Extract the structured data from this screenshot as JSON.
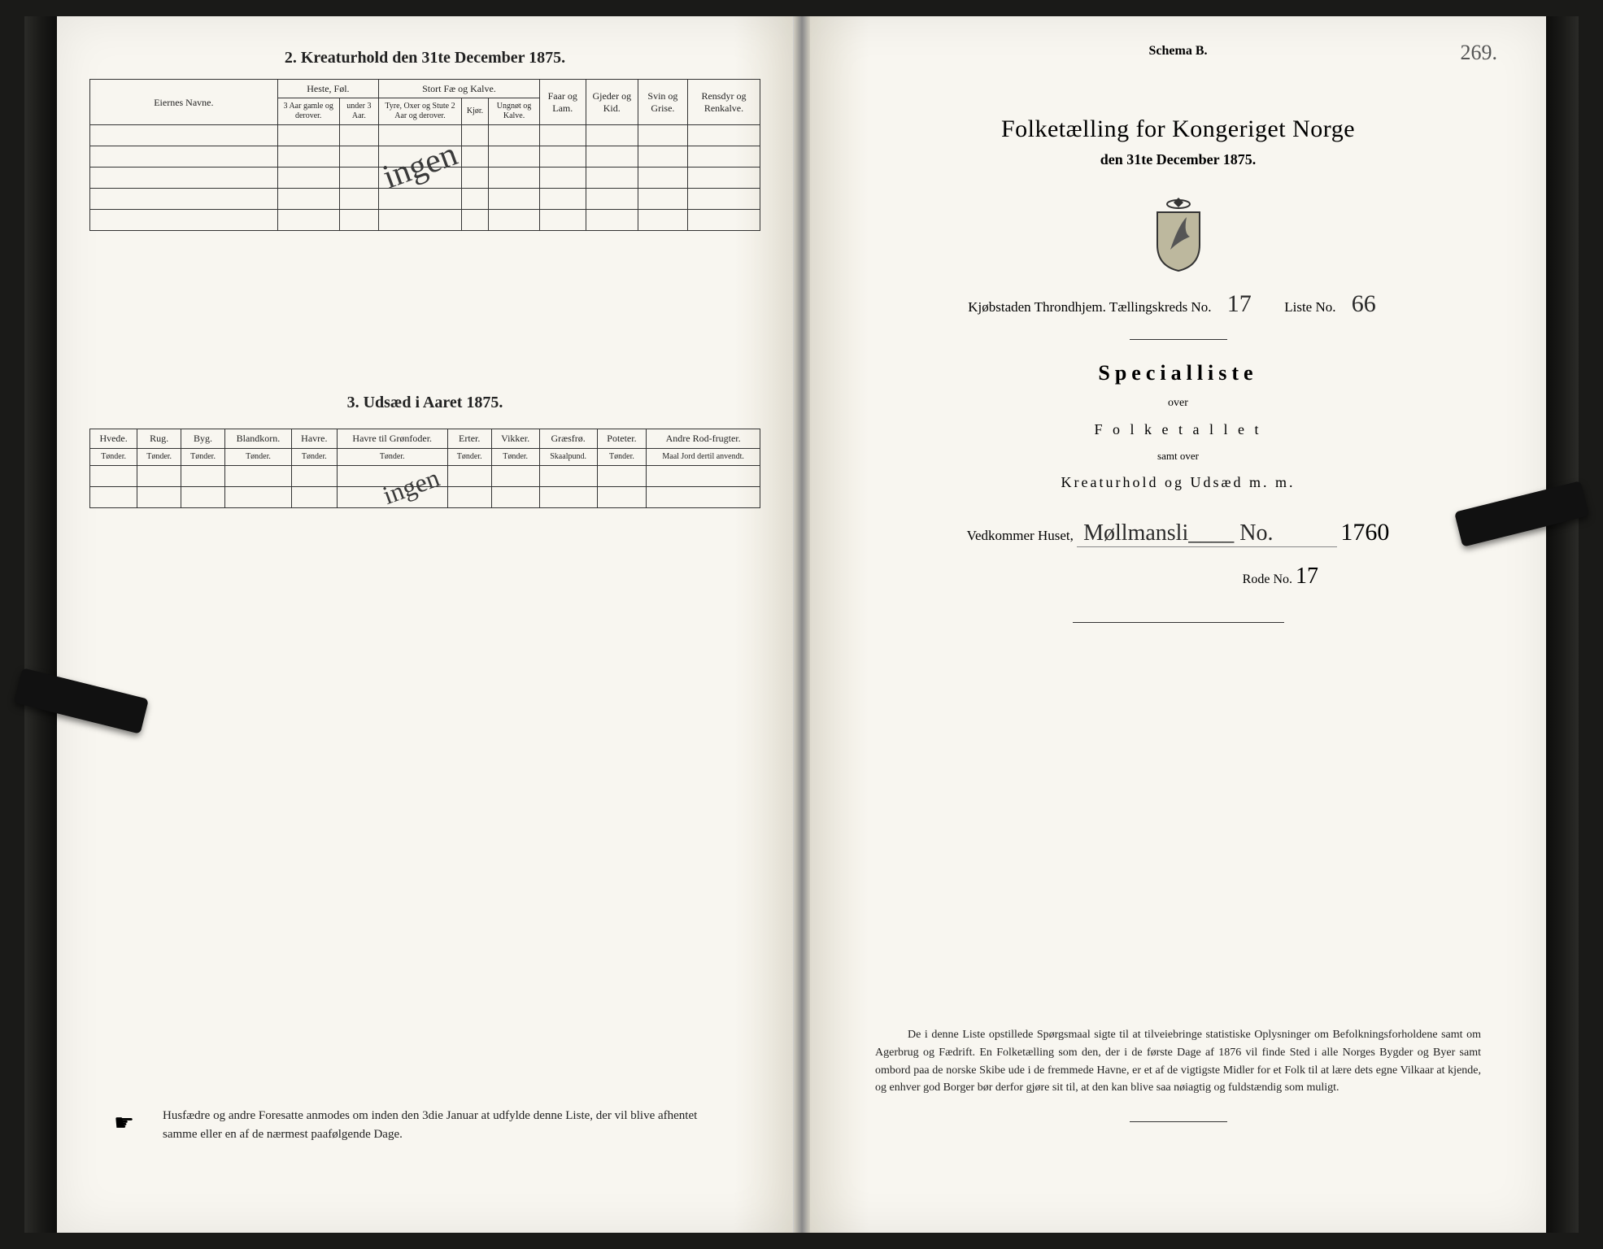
{
  "left": {
    "section2_title": "2.  Kreaturhold den 31te December 1875.",
    "section3_title": "3.  Udsæd i Aaret 1875.",
    "table1": {
      "col_eiernes": "Eiernes Navne.",
      "group_heste": "Heste, Føl.",
      "group_stort": "Stort Fæ og Kalve.",
      "col_faar": "Faar og Lam.",
      "col_gjeder": "Gjeder og Kid.",
      "col_svin": "Svin og Grise.",
      "col_rensdyr": "Rensdyr og Renkalve.",
      "sub_heste1": "3 Aar gamle og derover.",
      "sub_heste2": "under 3 Aar.",
      "sub_stort1": "Tyre, Oxer og Stute 2 Aar og derover.",
      "sub_stort2": "Kjør.",
      "sub_stort3": "Ungnøt og Kalve."
    },
    "table2": {
      "cols": [
        "Hvede.",
        "Rug.",
        "Byg.",
        "Blandkorn.",
        "Havre.",
        "Havre til Grønfoder.",
        "Erter.",
        "Vikker.",
        "Græsfrø.",
        "Poteter.",
        "Andre Rod-frugter."
      ],
      "units": [
        "Tønder.",
        "Tønder.",
        "Tønder.",
        "Tønder.",
        "Tønder.",
        "Tønder.",
        "Tønder.",
        "Tønder.",
        "Skaalpund.",
        "Tønder.",
        "Maal Jord dertil anvendt."
      ]
    },
    "hand_ingen": "ingen",
    "footnote": "Husfædre og andre Foresatte anmodes om inden den 3die Januar at udfylde denne Liste, der vil blive afhentet samme eller en af de nærmest paafølgende Dage."
  },
  "right": {
    "schema": "Schema B.",
    "page_no_hand": "269.",
    "title": "Folketælling for Kongeriget Norge",
    "subtitle": "den 31te December 1875.",
    "line_kjob": "Kjøbstaden Throndhjem.    Tællingskreds No.",
    "kreds_no": "17",
    "liste_label": "Liste No.",
    "liste_no": "66",
    "special": "Specialliste",
    "over": "over",
    "folketallet": "F o l k e t a l l e t",
    "samtover": "samt over",
    "kreatur": "Kreaturhold og Udsæd m. m.",
    "vedk_label": "Vedkommer Huset,",
    "vedk_hand": "Møllmansli____  No.",
    "matrno": "1760",
    "rode_label": "Rode No.",
    "rode_no": "17",
    "para": "De i denne Liste opstillede Spørgsmaal sigte til at tilveiebringe statistiske Oplysninger om Befolkningsforholdene samt om Agerbrug og Fædrift.  En Folketælling som den, der i de første Dage af 1876 vil finde Sted i alle Norges Bygder og Byer samt ombord paa de norske Skibe ude i de fremmede Havne, er et af de vigtigste Midler for et Folk til at lære dets egne Vilkaar at kjende, og enhver god Borger bør derfor gjøre sit til, at den kan blive saa nøiagtig og fuldstændig som muligt."
  },
  "colors": {
    "paper": "#f8f6f0",
    "ink": "#222222",
    "script": "#3a3a3a",
    "border": "#333333"
  }
}
